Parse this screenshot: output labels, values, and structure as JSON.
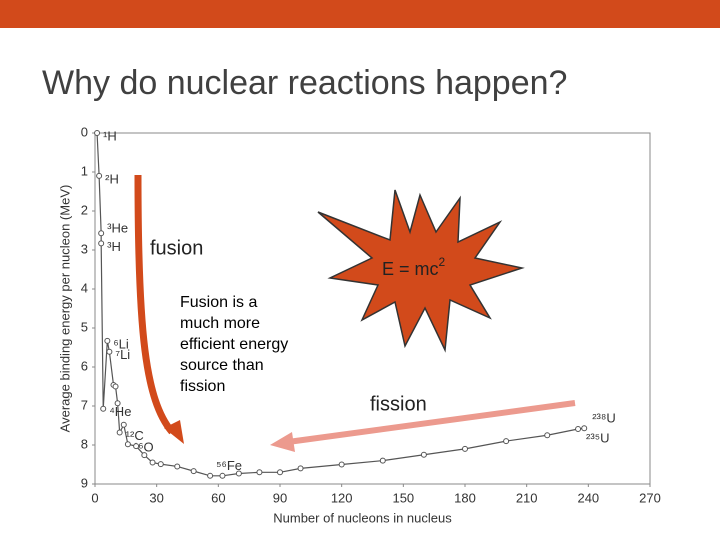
{
  "slide": {
    "title": "Why do nuclear reactions happen?",
    "fusion_label": "fusion",
    "fusion_note": "Fusion is a much more efficient energy source than fission",
    "equation": "E = mc",
    "equation_exponent": "2",
    "fission_label": "fission"
  },
  "chart_data": {
    "type": "line",
    "xlabel": "Number of nucleons in nucleus",
    "ylabel": "Average binding energy per nucleon (MeV)",
    "x": [
      1,
      2,
      3,
      3,
      4,
      6,
      7,
      9,
      10,
      11,
      12,
      14,
      16,
      20,
      24,
      28,
      32,
      40,
      48,
      56,
      62,
      70,
      80,
      90,
      100,
      120,
      140,
      160,
      180,
      200,
      220,
      235,
      238
    ],
    "values": [
      0,
      1.1,
      2.57,
      2.83,
      7.07,
      5.33,
      5.61,
      6.46,
      6.5,
      6.93,
      7.68,
      7.48,
      7.98,
      8.03,
      8.26,
      8.45,
      8.49,
      8.55,
      8.67,
      8.79,
      8.79,
      8.73,
      8.7,
      8.7,
      8.6,
      8.5,
      8.4,
      8.25,
      8.1,
      7.9,
      7.75,
      7.59,
      7.57
    ],
    "point_labels": [
      "¹H",
      "²H",
      "³He",
      "³H",
      "⁴He",
      "⁶Li",
      "⁷Li",
      null,
      null,
      null,
      "¹²C",
      null,
      "¹⁶O",
      null,
      null,
      null,
      null,
      null,
      null,
      "⁵⁶Fe",
      null,
      null,
      null,
      null,
      null,
      null,
      null,
      null,
      null,
      null,
      null,
      "²³⁵U",
      "²³⁸U"
    ],
    "color": "#555555",
    "y_inverted": true,
    "xlim": [
      0,
      270
    ],
    "ylim": [
      0,
      9
    ],
    "xticks": [
      0,
      30,
      60,
      90,
      120,
      150,
      180,
      210,
      240,
      270
    ],
    "yticks": [
      0,
      1,
      2,
      3,
      4,
      5,
      6,
      7,
      8,
      9
    ]
  }
}
